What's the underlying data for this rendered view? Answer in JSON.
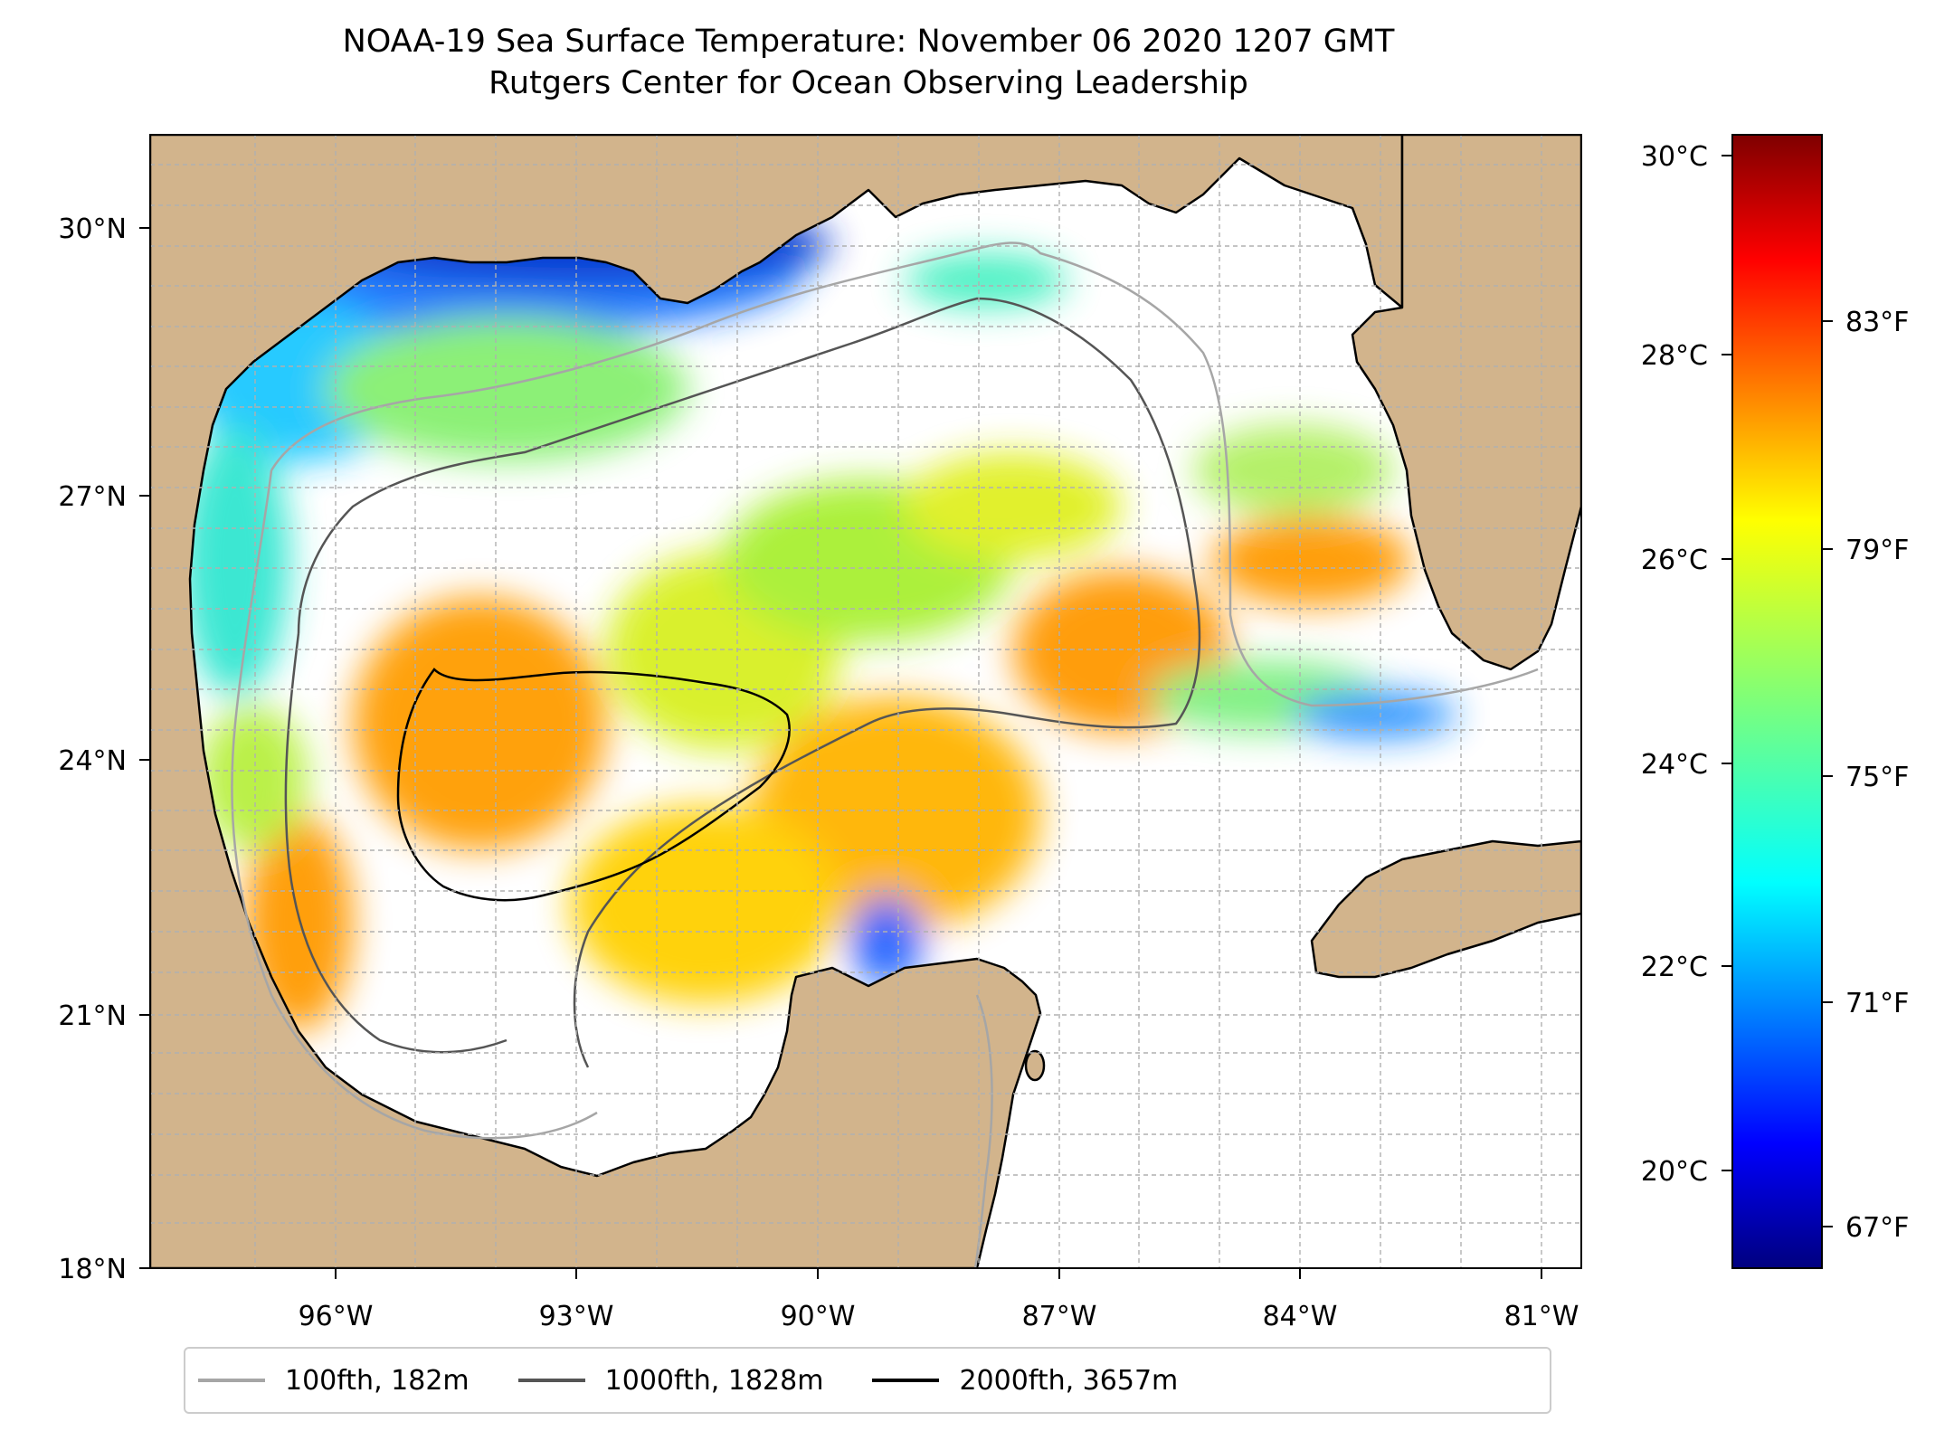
{
  "title": {
    "line1": "NOAA-19 Sea Surface Temperature: November 06 2020 1207 GMT",
    "line2": "Rutgers Center for Ocean Observing Leadership"
  },
  "map": {
    "region": "Gulf of Mexico",
    "lon_range": [
      -98.3,
      -80.5
    ],
    "lat_range": [
      18.0,
      31.0
    ],
    "lon_tick_labels": [
      "96°W",
      "93°W",
      "90°W",
      "87°W",
      "84°W",
      "81°W"
    ],
    "lat_tick_labels": [
      "18°N",
      "21°N",
      "24°N",
      "27°N",
      "30°N"
    ],
    "grid": true,
    "land_color": "#d2b48c"
  },
  "colorbar": {
    "colormap": "jet",
    "celsius_labels": [
      "30°C",
      "28°C",
      "26°C",
      "24°C",
      "22°C",
      "20°C"
    ],
    "fahrenheit_labels": [
      "83°F",
      "79°F",
      "75°F",
      "71°F",
      "67°F"
    ]
  },
  "legend": {
    "items": [
      {
        "label": "100fth, 182m",
        "color": "#a6a6a6"
      },
      {
        "label": "1000fth, 1828m",
        "color": "#555555"
      },
      {
        "label": "2000fth, 3657m",
        "color": "#000000"
      }
    ]
  }
}
